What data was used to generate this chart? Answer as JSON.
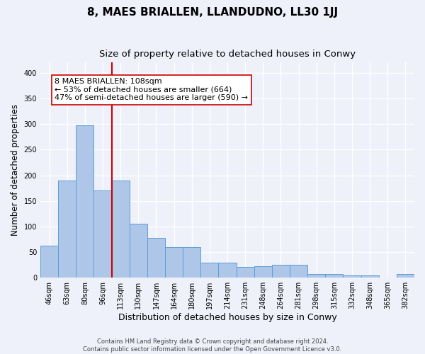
{
  "title": "8, MAES BRIALLEN, LLANDUDNO, LL30 1JJ",
  "subtitle": "Size of property relative to detached houses in Conwy",
  "xlabel": "Distribution of detached houses by size in Conwy",
  "ylabel": "Number of detached properties",
  "categories": [
    "46sqm",
    "63sqm",
    "80sqm",
    "96sqm",
    "113sqm",
    "130sqm",
    "147sqm",
    "164sqm",
    "180sqm",
    "197sqm",
    "214sqm",
    "231sqm",
    "248sqm",
    "264sqm",
    "281sqm",
    "298sqm",
    "315sqm",
    "332sqm",
    "348sqm",
    "365sqm",
    "382sqm"
  ],
  "values": [
    63,
    190,
    297,
    170,
    190,
    105,
    78,
    60,
    60,
    30,
    30,
    21,
    22,
    25,
    25,
    8,
    7,
    5,
    4,
    1,
    7
  ],
  "bar_color": "#aec6e8",
  "bar_edge_color": "#5a9fd4",
  "background_color": "#eef1fa",
  "grid_color": "#ffffff",
  "annotation_text": "8 MAES BRIALLEN: 108sqm\n← 53% of detached houses are smaller (664)\n47% of semi-detached houses are larger (590) →",
  "vline_x_index": 4,
  "vline_color": "#cc0000",
  "annotation_box_facecolor": "#ffffff",
  "annotation_box_edgecolor": "#cc0000",
  "footnote": "Contains HM Land Registry data © Crown copyright and database right 2024.\nContains public sector information licensed under the Open Government Licence v3.0.",
  "ylim": [
    0,
    420
  ],
  "title_fontsize": 11,
  "subtitle_fontsize": 9.5,
  "ylabel_fontsize": 8.5,
  "xlabel_fontsize": 9,
  "tick_fontsize": 7,
  "footnote_fontsize": 6,
  "annotation_fontsize": 8
}
